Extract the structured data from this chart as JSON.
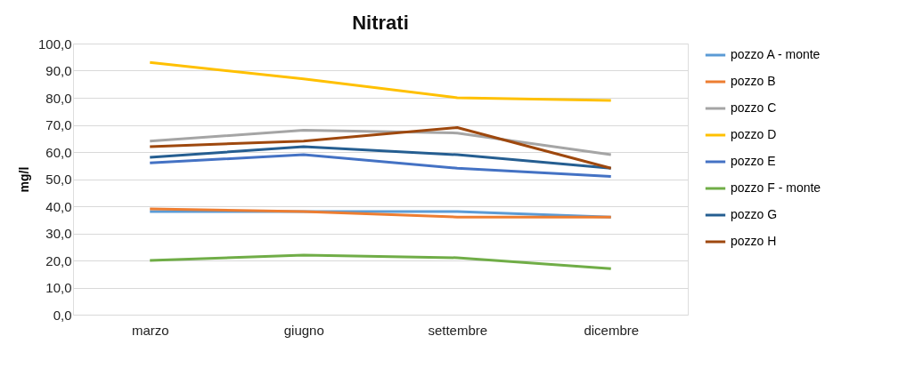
{
  "chart_data": {
    "type": "line",
    "title": "Nitrati",
    "ylabel": "mg/l",
    "categories": [
      "marzo",
      "giugno",
      "settembre",
      "dicembre"
    ],
    "series": [
      {
        "name": "pozzo A - monte",
        "color": "#5b9bd5",
        "values": [
          38,
          38,
          38,
          36
        ]
      },
      {
        "name": "pozzo B",
        "color": "#ed7d31",
        "values": [
          39,
          38,
          36,
          36
        ]
      },
      {
        "name": "pozzo C",
        "color": "#a5a5a5",
        "values": [
          64,
          68,
          67,
          59
        ]
      },
      {
        "name": "pozzo D",
        "color": "#ffc000",
        "values": [
          93,
          87,
          80,
          79
        ]
      },
      {
        "name": "pozzo E",
        "color": "#4472c4",
        "values": [
          56,
          59,
          54,
          51
        ]
      },
      {
        "name": "pozzo F - monte",
        "color": "#70ad47",
        "values": [
          20,
          22,
          21,
          17
        ]
      },
      {
        "name": "pozzo G",
        "color": "#255e91",
        "values": [
          58,
          62,
          59,
          54
        ]
      },
      {
        "name": "pozzo H",
        "color": "#9e480e",
        "values": [
          62,
          64,
          69,
          54
        ]
      }
    ],
    "ylim": [
      0,
      100
    ],
    "yticks": [
      {
        "value": 0,
        "label": "0,0"
      },
      {
        "value": 10,
        "label": "10,0"
      },
      {
        "value": 20,
        "label": "20,0"
      },
      {
        "value": 30,
        "label": "30,0"
      },
      {
        "value": 40,
        "label": "40,0"
      },
      {
        "value": 50,
        "label": "50,0"
      },
      {
        "value": 60,
        "label": "60,0"
      },
      {
        "value": 70,
        "label": "70,0"
      },
      {
        "value": 80,
        "label": "80,0"
      },
      {
        "value": 90,
        "label": "90,0"
      },
      {
        "value": 100,
        "label": "100,0"
      }
    ],
    "grid": "y",
    "legend": "right",
    "marker": "none",
    "line_style": "solid"
  }
}
